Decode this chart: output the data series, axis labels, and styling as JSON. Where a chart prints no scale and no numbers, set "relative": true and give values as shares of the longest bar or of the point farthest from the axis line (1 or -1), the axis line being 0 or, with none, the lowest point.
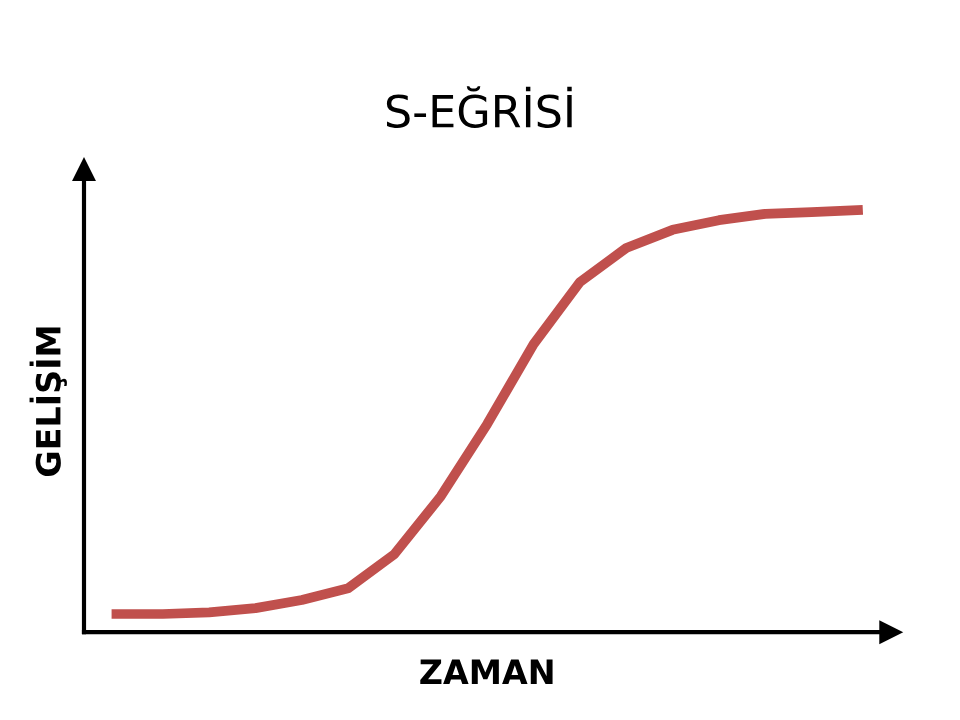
{
  "chart_data": {
    "type": "line",
    "title": "S-EĞRİSİ",
    "xlabel": "ZAMAN",
    "ylabel": "GELİŞİM",
    "relative": true,
    "categories": [
      null,
      null,
      null,
      null,
      null,
      null,
      null,
      null,
      null,
      null,
      null,
      null,
      null,
      null,
      null,
      null,
      null
    ],
    "series": [
      {
        "color": "#c0504d",
        "values": [
          0.043,
          0.043,
          0.047,
          0.057,
          0.076,
          0.104,
          0.185,
          0.322,
          0.493,
          0.682,
          0.829,
          0.91,
          0.953,
          0.976,
          0.991,
          0.995,
          1.0
        ]
      }
    ],
    "marker": "none",
    "line_style": "solid",
    "grid": false,
    "legend": false
  }
}
